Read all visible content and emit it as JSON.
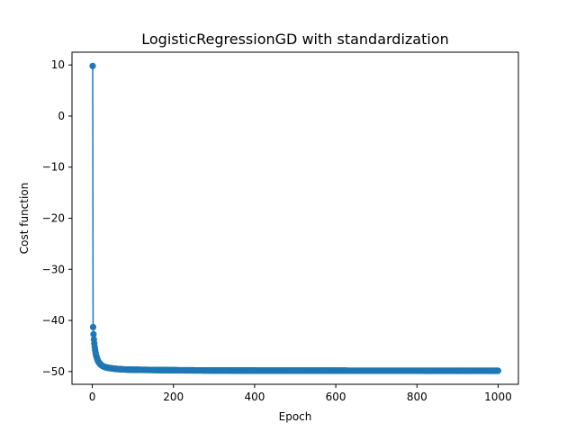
{
  "chart_data": {
    "type": "line",
    "title": "LogisticRegressionGD with standardization",
    "xlabel": "Epoch",
    "ylabel": "Cost function",
    "xlim": [
      -50,
      1050
    ],
    "ylim": [
      -52.5,
      12.5
    ],
    "xticks": [
      0,
      200,
      400,
      600,
      800,
      1000
    ],
    "yticks": [
      10,
      0,
      -10,
      -20,
      -30,
      -40,
      -50
    ],
    "grid": false,
    "legend": "none",
    "series_color": "#1f77b4",
    "marker": "circle",
    "x_max": 1000,
    "series": [
      {
        "x": [
          1,
          2,
          3,
          4,
          5,
          6,
          7,
          8,
          9,
          10,
          12,
          14,
          16,
          18,
          20,
          25,
          30,
          40,
          50,
          60,
          80,
          100,
          150,
          200,
          300,
          400,
          500,
          600,
          700,
          800,
          900,
          1000
        ],
        "values": [
          9.8,
          -41.3,
          -42.7,
          -43.7,
          -44.5,
          -45.2,
          -45.8,
          -46.3,
          -46.7,
          -47.0,
          -47.5,
          -47.9,
          -48.2,
          -48.4,
          -48.6,
          -48.9,
          -49.1,
          -49.3,
          -49.4,
          -49.5,
          -49.6,
          -49.65,
          -49.7,
          -49.75,
          -49.8,
          -49.82,
          -49.83,
          -49.84,
          -49.85,
          -49.85,
          -49.86,
          -49.86
        ]
      }
    ]
  }
}
